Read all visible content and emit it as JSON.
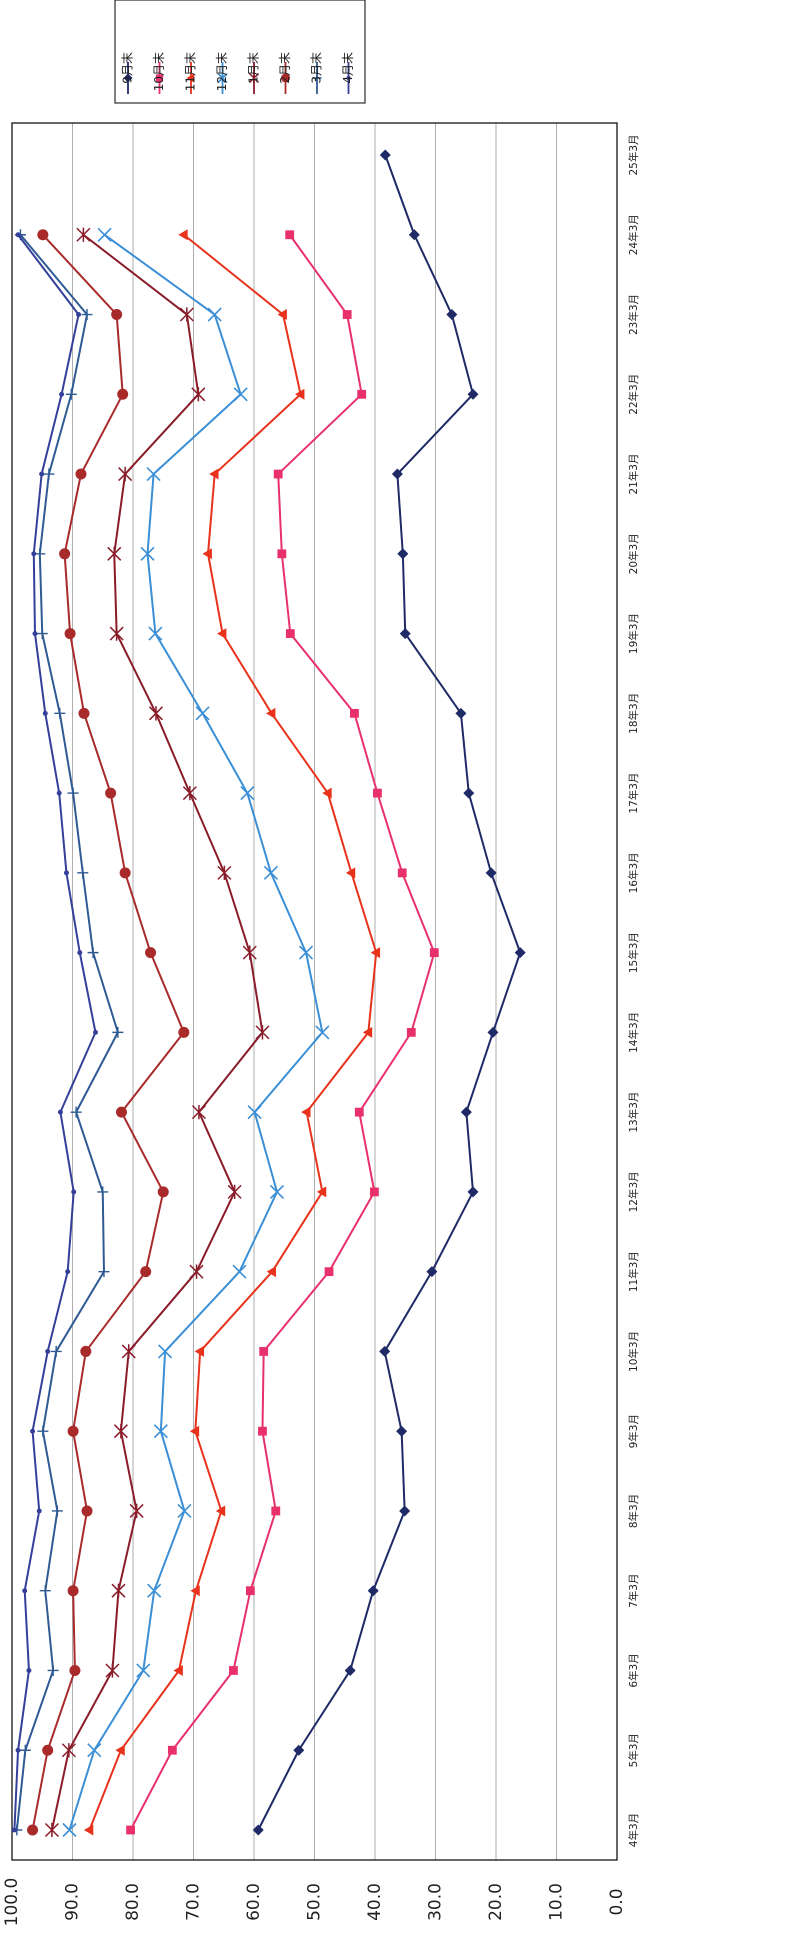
{
  "chart_data": {
    "type": "line",
    "orientation": "rotated-90-clockwise",
    "categories": [
      "4年3月",
      "5年3月",
      "6年3月",
      "7年3月",
      "8年3月",
      "9年3月",
      "10年3月",
      "11年3月",
      "12年3月",
      "13年3月",
      "14年3月",
      "15年3月",
      "16年3月",
      "17年3月",
      "18年3月",
      "19年3月",
      "20年3月",
      "21年3月",
      "22年3月",
      "23年3月",
      "24年3月",
      "25年3月"
    ],
    "ylim": [
      0,
      100
    ],
    "y_ticks": [
      "0.0",
      "10.0",
      "20.0",
      "30.0",
      "40.0",
      "50.0",
      "60.0",
      "70.0",
      "80.0",
      "90.0",
      "100.0"
    ],
    "grid": true,
    "legend_position": "top",
    "series": [
      {
        "name": "9月末",
        "color": "#1f2a66",
        "marker": "diamond",
        "values": [
          59.3,
          52.6,
          44.1,
          40.3,
          35.1,
          35.6,
          38.4,
          30.6,
          23.8,
          24.9,
          20.5,
          16.0,
          20.8,
          24.5,
          25.8,
          35.0,
          35.4,
          36.3,
          23.8,
          27.3,
          33.5,
          38.3
        ]
      },
      {
        "name": "10月末",
        "color": "#e8306b",
        "marker": "square",
        "values": [
          80.4,
          73.5,
          63.4,
          60.6,
          56.4,
          58.6,
          58.4,
          47.6,
          40.1,
          42.6,
          34.0,
          30.2,
          35.5,
          39.6,
          43.4,
          54.0,
          55.4,
          56.0,
          42.2,
          44.6,
          54.1,
          null
        ]
      },
      {
        "name": "11月末",
        "color": "#e8321c",
        "marker": "triangle",
        "values": [
          87.2,
          82.0,
          72.4,
          69.6,
          65.4,
          69.7,
          68.9,
          57.0,
          48.7,
          51.3,
          41.1,
          39.8,
          43.9,
          47.8,
          57.1,
          65.2,
          67.6,
          66.5,
          52.3,
          55.2,
          71.6,
          null
        ]
      },
      {
        "name": "12月末",
        "color": "#3a8fd6",
        "marker": "x",
        "values": [
          90.5,
          86.4,
          78.3,
          76.5,
          71.5,
          75.4,
          74.7,
          62.4,
          56.2,
          59.9,
          48.7,
          51.4,
          57.2,
          61.1,
          68.5,
          76.3,
          77.6,
          76.6,
          62.2,
          66.5,
          84.7,
          null
        ]
      },
      {
        "name": "1月末",
        "color": "#8a1c2a",
        "marker": "star",
        "values": [
          93.4,
          90.6,
          83.4,
          82.4,
          79.4,
          82.0,
          80.7,
          69.5,
          63.2,
          69.1,
          58.6,
          60.7,
          64.9,
          70.6,
          76.2,
          82.7,
          83.1,
          81.3,
          69.2,
          71.1,
          88.2,
          null
        ]
      },
      {
        "name": "2月末",
        "color": "#a82a2a",
        "marker": "circle",
        "values": [
          96.6,
          94.1,
          89.6,
          89.9,
          87.6,
          89.9,
          87.8,
          77.9,
          75.0,
          81.9,
          71.6,
          77.1,
          81.3,
          83.7,
          88.1,
          90.4,
          91.3,
          88.6,
          81.7,
          82.7,
          94.9,
          null
        ]
      },
      {
        "name": "3月末",
        "color": "#2f5a94",
        "marker": "plus",
        "values": [
          99.2,
          97.8,
          93.2,
          94.5,
          92.5,
          94.9,
          92.7,
          84.8,
          85.0,
          89.4,
          82.5,
          86.6,
          88.3,
          89.9,
          92.1,
          95.0,
          95.4,
          93.9,
          90.2,
          87.6,
          98.6,
          null
        ]
      },
      {
        "name": "4月末",
        "color": "#343f9a",
        "marker": "dot",
        "values": [
          99.6,
          99.0,
          97.2,
          97.9,
          95.5,
          96.6,
          94.1,
          90.8,
          89.8,
          92.0,
          86.2,
          88.8,
          91.0,
          92.2,
          94.5,
          96.2,
          96.4,
          95.1,
          91.8,
          89.0,
          99.0,
          null
        ]
      }
    ]
  }
}
